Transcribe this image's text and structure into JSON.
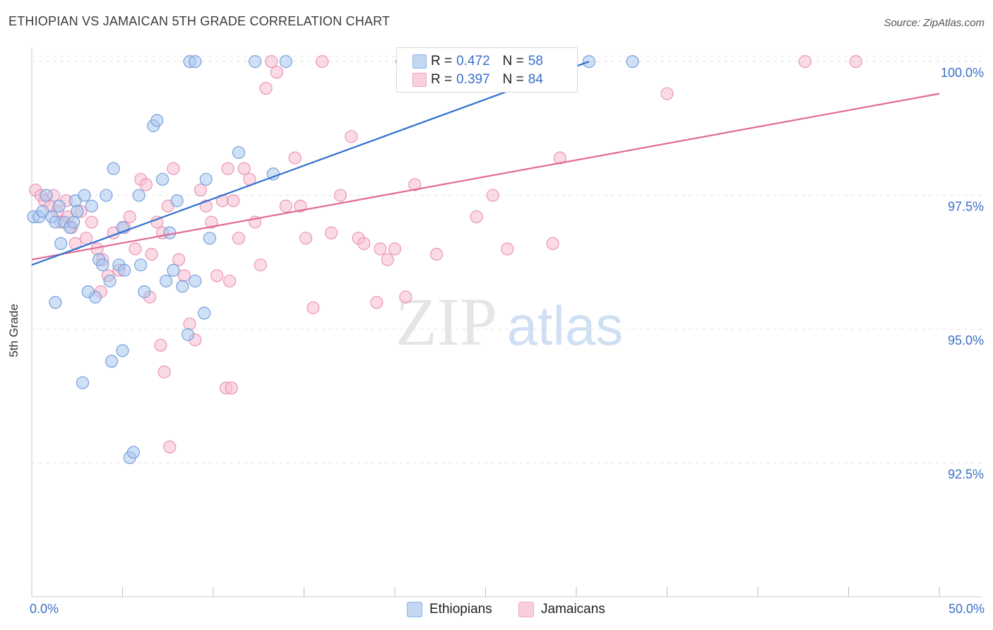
{
  "header": {
    "title": "ETHIOPIAN VS JAMAICAN 5TH GRADE CORRELATION CHART",
    "source": "Source: ZipAtlas.com"
  },
  "watermark": {
    "zip": "ZIP",
    "atlas": "atlas"
  },
  "legend_top": {
    "rows": [
      {
        "r_label": "R =",
        "r_value": "0.472",
        "n_label": "N =",
        "n_value": "58",
        "color": "#8fb4e8"
      },
      {
        "r_label": "R =",
        "r_value": "0.397",
        "n_label": "N =",
        "n_value": "84",
        "color": "#f2a5bf"
      }
    ]
  },
  "legend_bottom": {
    "items": [
      {
        "label": "Ethiopians",
        "color": "#8fb4e8"
      },
      {
        "label": "Jamaicans",
        "color": "#f2a5bf"
      }
    ]
  },
  "colors": {
    "ethiopians_fill": "#a9c6ef",
    "ethiopians_stroke": "#6f9bd8",
    "ethiopians_line": "#2f6fcf",
    "jamaicans_fill": "#f6bed0",
    "jamaicans_stroke": "#ea8fae",
    "jamaicans_line": "#e06a95",
    "tick_text": "#3b6fc9"
  },
  "chart_data": {
    "type": "scatter",
    "title": "ETHIOPIAN VS JAMAICAN 5TH GRADE CORRELATION CHART",
    "xlabel": "",
    "ylabel": "5th Grade",
    "xlim": [
      0,
      50
    ],
    "ylim": [
      90.0,
      100.2
    ],
    "x_tick_labels": [
      "0.0%",
      "50.0%"
    ],
    "y_ticks": [
      92.5,
      95.0,
      97.5,
      100.0
    ],
    "y_tick_labels": [
      "92.5%",
      "95.0%",
      "97.5%",
      "100.0%"
    ],
    "grid": true,
    "legend_position": "top-center",
    "series": [
      {
        "name": "Ethiopians",
        "r": 0.472,
        "n": 58,
        "trend": {
          "x": [
            0.0,
            30.7
          ],
          "y": [
            96.2,
            100.0
          ]
        },
        "points": [
          [
            0.1,
            97.1
          ],
          [
            0.4,
            97.1
          ],
          [
            0.6,
            97.2
          ],
          [
            0.8,
            97.5
          ],
          [
            1.1,
            97.1
          ],
          [
            1.3,
            97.0
          ],
          [
            1.5,
            97.3
          ],
          [
            1.6,
            96.6
          ],
          [
            1.8,
            97.0
          ],
          [
            2.1,
            96.9
          ],
          [
            2.3,
            97.0
          ],
          [
            2.4,
            97.4
          ],
          [
            2.5,
            97.2
          ],
          [
            2.9,
            97.5
          ],
          [
            3.3,
            97.3
          ],
          [
            3.7,
            96.3
          ],
          [
            3.9,
            96.2
          ],
          [
            4.1,
            97.5
          ],
          [
            4.5,
            98.0
          ],
          [
            4.8,
            96.2
          ],
          [
            5.0,
            96.9
          ],
          [
            5.1,
            96.1
          ],
          [
            5.9,
            97.5
          ],
          [
            6.0,
            96.2
          ],
          [
            6.2,
            95.7
          ],
          [
            6.7,
            98.8
          ],
          [
            6.9,
            98.9
          ],
          [
            7.2,
            97.8
          ],
          [
            7.4,
            95.9
          ],
          [
            7.6,
            96.8
          ],
          [
            7.8,
            96.1
          ],
          [
            8.0,
            97.4
          ],
          [
            8.3,
            95.8
          ],
          [
            9.0,
            95.9
          ],
          [
            9.5,
            95.3
          ],
          [
            9.6,
            97.8
          ],
          [
            9.8,
            96.7
          ],
          [
            11.4,
            98.3
          ],
          [
            12.3,
            100.0
          ],
          [
            13.3,
            97.9
          ],
          [
            14.0,
            100.0
          ],
          [
            20.4,
            100.0
          ],
          [
            21.3,
            100.0
          ],
          [
            24.0,
            100.0
          ],
          [
            30.7,
            100.0
          ],
          [
            33.1,
            100.0
          ],
          [
            8.7,
            100.0
          ],
          [
            9.0,
            100.0
          ],
          [
            2.8,
            94.0
          ],
          [
            4.4,
            94.4
          ],
          [
            5.0,
            94.6
          ],
          [
            5.4,
            92.6
          ],
          [
            5.6,
            92.7
          ],
          [
            8.6,
            94.9
          ],
          [
            3.5,
            95.6
          ],
          [
            4.3,
            95.9
          ],
          [
            1.3,
            95.5
          ],
          [
            3.1,
            95.7
          ]
        ]
      },
      {
        "name": "Jamaicans",
        "r": 0.397,
        "n": 84,
        "trend": {
          "x": [
            0.0,
            50.0
          ],
          "y": [
            96.3,
            99.4
          ]
        },
        "points": [
          [
            0.2,
            97.6
          ],
          [
            0.5,
            97.5
          ],
          [
            0.7,
            97.4
          ],
          [
            1.0,
            97.3
          ],
          [
            1.2,
            97.5
          ],
          [
            1.4,
            97.2
          ],
          [
            1.6,
            97.0
          ],
          [
            2.0,
            97.1
          ],
          [
            2.2,
            96.9
          ],
          [
            2.4,
            96.6
          ],
          [
            2.7,
            97.2
          ],
          [
            3.0,
            96.7
          ],
          [
            3.3,
            97.0
          ],
          [
            3.6,
            96.5
          ],
          [
            3.9,
            96.3
          ],
          [
            4.2,
            96.0
          ],
          [
            4.5,
            96.8
          ],
          [
            4.8,
            96.1
          ],
          [
            5.1,
            96.9
          ],
          [
            5.4,
            97.1
          ],
          [
            5.7,
            96.5
          ],
          [
            6.0,
            97.8
          ],
          [
            6.3,
            97.7
          ],
          [
            6.6,
            96.4
          ],
          [
            6.9,
            97.0
          ],
          [
            7.2,
            96.8
          ],
          [
            7.5,
            97.3
          ],
          [
            7.8,
            98.0
          ],
          [
            8.1,
            96.3
          ],
          [
            8.4,
            96.0
          ],
          [
            8.7,
            95.1
          ],
          [
            9.0,
            94.8
          ],
          [
            9.3,
            97.6
          ],
          [
            9.6,
            97.3
          ],
          [
            9.9,
            97.0
          ],
          [
            10.2,
            96.0
          ],
          [
            10.5,
            97.4
          ],
          [
            10.8,
            98.0
          ],
          [
            11.1,
            97.4
          ],
          [
            11.4,
            96.7
          ],
          [
            11.7,
            98.0
          ],
          [
            12.0,
            97.8
          ],
          [
            12.3,
            97.0
          ],
          [
            12.6,
            96.2
          ],
          [
            12.9,
            99.5
          ],
          [
            13.2,
            100.0
          ],
          [
            13.5,
            99.8
          ],
          [
            14.0,
            97.3
          ],
          [
            14.5,
            98.2
          ],
          [
            14.8,
            97.3
          ],
          [
            15.1,
            96.7
          ],
          [
            15.5,
            95.4
          ],
          [
            16.0,
            100.0
          ],
          [
            16.5,
            96.8
          ],
          [
            17.0,
            97.5
          ],
          [
            17.6,
            98.6
          ],
          [
            18.0,
            96.7
          ],
          [
            18.3,
            96.6
          ],
          [
            19.0,
            95.5
          ],
          [
            19.2,
            96.5
          ],
          [
            19.6,
            96.3
          ],
          [
            20.0,
            96.5
          ],
          [
            20.6,
            95.6
          ],
          [
            21.1,
            97.7
          ],
          [
            21.6,
            100.0
          ],
          [
            22.3,
            96.4
          ],
          [
            24.5,
            97.1
          ],
          [
            25.4,
            97.5
          ],
          [
            26.2,
            96.5
          ],
          [
            26.8,
            100.0
          ],
          [
            28.7,
            96.6
          ],
          [
            29.1,
            98.2
          ],
          [
            35.0,
            99.4
          ],
          [
            42.6,
            100.0
          ],
          [
            45.4,
            100.0
          ],
          [
            3.8,
            95.7
          ],
          [
            6.5,
            95.6
          ],
          [
            7.1,
            94.7
          ],
          [
            7.3,
            94.2
          ],
          [
            7.6,
            92.8
          ],
          [
            10.7,
            93.9
          ],
          [
            11.0,
            93.9
          ],
          [
            10.9,
            95.9
          ],
          [
            1.9,
            97.4
          ]
        ]
      }
    ]
  }
}
